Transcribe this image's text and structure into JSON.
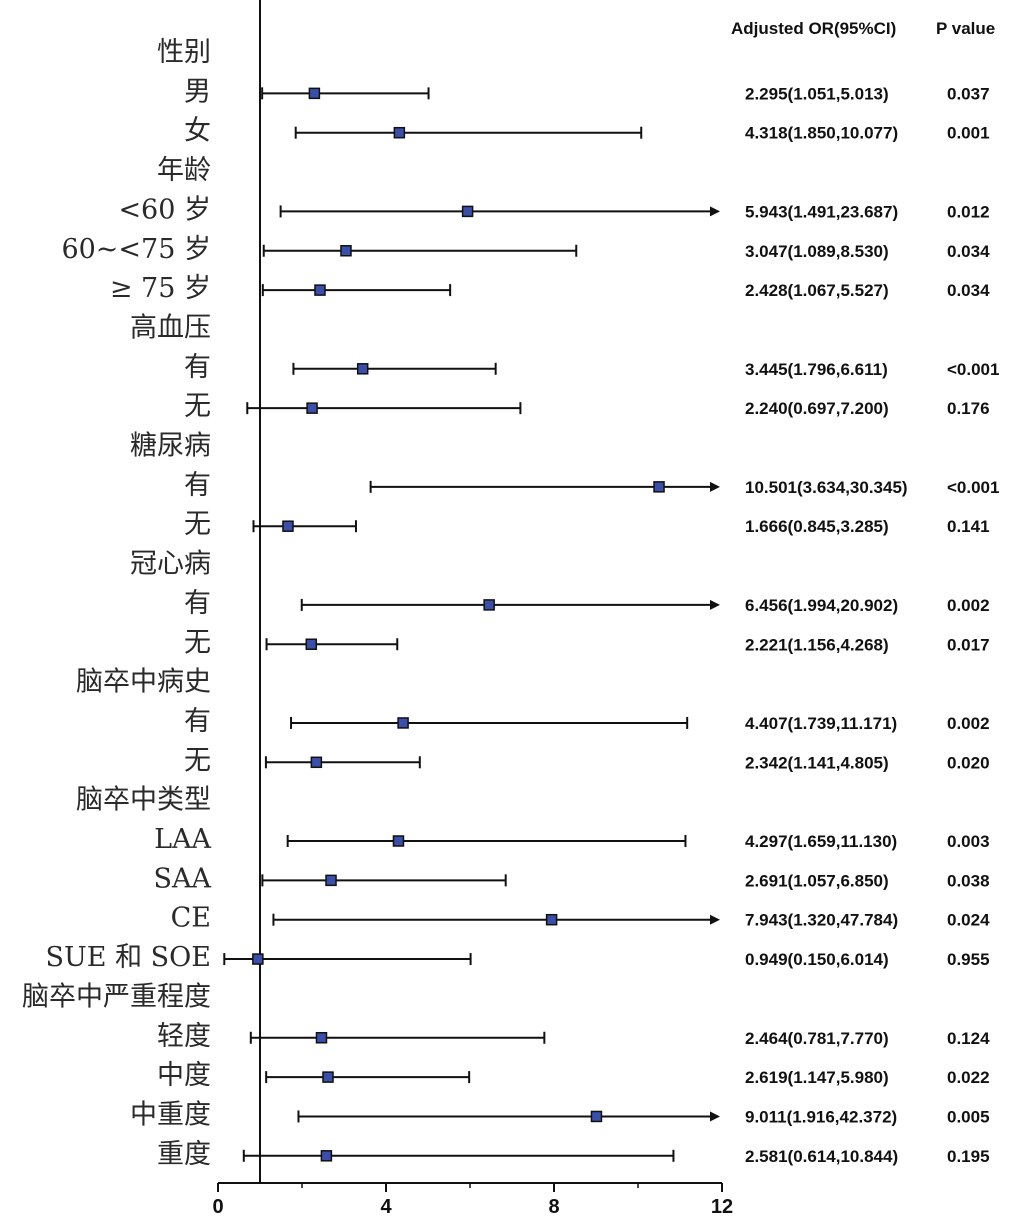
{
  "chart_data": {
    "type": "forest",
    "header": {
      "or_label": "Adjusted OR(95%CI)",
      "p_label": "P value"
    },
    "x_ticks": [
      0,
      4,
      8,
      12
    ],
    "xlim": [
      0,
      12
    ],
    "reference_line": 1,
    "colors": {
      "marker": "#3b4ea8",
      "line": "#111111"
    },
    "rows": [
      {
        "label": "性别",
        "group": true
      },
      {
        "label": "男",
        "or": 2.295,
        "lo": 1.051,
        "hi": 5.013,
        "or_text": "2.295(1.051,5.013)",
        "p": "0.037"
      },
      {
        "label": "女",
        "or": 4.318,
        "lo": 1.85,
        "hi": 10.077,
        "or_text": "4.318(1.850,10.077)",
        "p": "0.001"
      },
      {
        "label": "年龄",
        "group": true
      },
      {
        "label": "<60 岁",
        "or": 5.943,
        "lo": 1.491,
        "hi": 23.687,
        "or_text": "5.943(1.491,23.687)",
        "p": "0.012"
      },
      {
        "label": "60~<75 岁",
        "or": 3.047,
        "lo": 1.089,
        "hi": 8.53,
        "or_text": "3.047(1.089,8.530)",
        "p": "0.034"
      },
      {
        "label": "≥ 75 岁",
        "or": 2.428,
        "lo": 1.067,
        "hi": 5.527,
        "or_text": "2.428(1.067,5.527)",
        "p": "0.034"
      },
      {
        "label": "高血压",
        "group": true
      },
      {
        "label": "有",
        "or": 3.445,
        "lo": 1.796,
        "hi": 6.611,
        "or_text": "3.445(1.796,6.611)",
        "p": "<0.001"
      },
      {
        "label": "无",
        "or": 2.24,
        "lo": 0.697,
        "hi": 7.2,
        "or_text": "2.240(0.697,7.200)",
        "p": "0.176"
      },
      {
        "label": "糖尿病",
        "group": true
      },
      {
        "label": "有",
        "or": 10.501,
        "lo": 3.634,
        "hi": 30.345,
        "or_text": "10.501(3.634,30.345)",
        "p": "<0.001"
      },
      {
        "label": "无",
        "or": 1.666,
        "lo": 0.845,
        "hi": 3.285,
        "or_text": "1.666(0.845,3.285)",
        "p": "0.141"
      },
      {
        "label": "冠心病",
        "group": true
      },
      {
        "label": "有",
        "or": 6.456,
        "lo": 1.994,
        "hi": 20.902,
        "or_text": "6.456(1.994,20.902)",
        "p": "0.002"
      },
      {
        "label": "无",
        "or": 2.221,
        "lo": 1.156,
        "hi": 4.268,
        "or_text": "2.221(1.156,4.268)",
        "p": "0.017"
      },
      {
        "label": "脑卒中病史",
        "group": true
      },
      {
        "label": "有",
        "or": 4.407,
        "lo": 1.739,
        "hi": 11.171,
        "or_text": "4.407(1.739,11.171)",
        "p": "0.002"
      },
      {
        "label": "无",
        "or": 2.342,
        "lo": 1.141,
        "hi": 4.805,
        "or_text": "2.342(1.141,4.805)",
        "p": "0.020"
      },
      {
        "label": "脑卒中类型",
        "group": true
      },
      {
        "label": "LAA",
        "or": 4.297,
        "lo": 1.659,
        "hi": 11.13,
        "or_text": "4.297(1.659,11.130)",
        "p": "0.003"
      },
      {
        "label": "SAA",
        "or": 2.691,
        "lo": 1.057,
        "hi": 6.85,
        "or_text": "2.691(1.057,6.850)",
        "p": "0.038"
      },
      {
        "label": "CE",
        "or": 7.943,
        "lo": 1.32,
        "hi": 47.784,
        "or_text": "7.943(1.320,47.784)",
        "p": "0.024"
      },
      {
        "label": "SUE 和 SOE",
        "or": 0.949,
        "lo": 0.15,
        "hi": 6.014,
        "or_text": "0.949(0.150,6.014)",
        "p": "0.955"
      },
      {
        "label": "脑卒中严重程度",
        "group": true
      },
      {
        "label": "轻度",
        "or": 2.464,
        "lo": 0.781,
        "hi": 7.77,
        "or_text": "2.464(0.781,7.770)",
        "p": "0.124"
      },
      {
        "label": "中度",
        "or": 2.619,
        "lo": 1.147,
        "hi": 5.98,
        "or_text": "2.619(1.147,5.980)",
        "p": "0.022"
      },
      {
        "label": "中重度",
        "or": 9.011,
        "lo": 1.916,
        "hi": 42.372,
        "or_text": "9.011(1.916,42.372)",
        "p": "0.005"
      },
      {
        "label": "重度",
        "or": 2.581,
        "lo": 0.614,
        "hi": 10.844,
        "or_text": "2.581(0.614,10.844)",
        "p": "0.195"
      }
    ]
  }
}
